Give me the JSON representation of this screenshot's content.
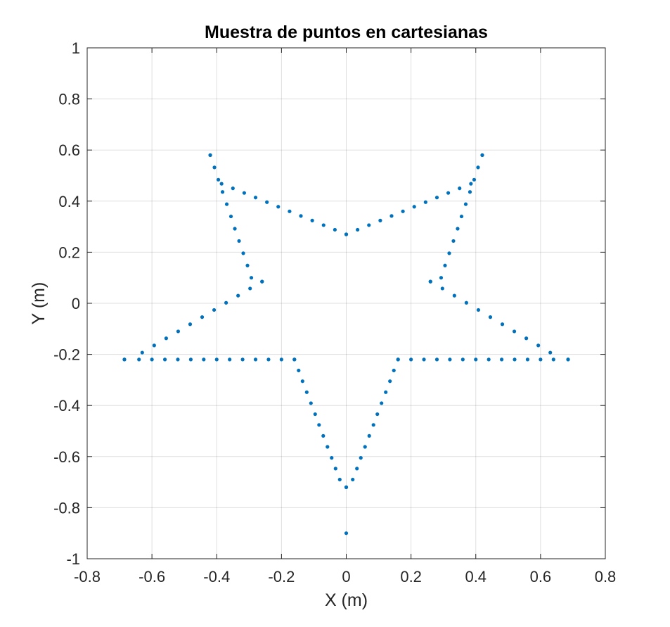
{
  "chart_data": {
    "type": "scatter",
    "title": "Muestra de puntos en cartesianas",
    "xlabel": "X (m)",
    "ylabel": "Y (m)",
    "xlim": [
      -0.8,
      0.8
    ],
    "ylim": [
      -1,
      1
    ],
    "xticks": [
      -0.8,
      -0.6,
      -0.4,
      -0.2,
      0,
      0.2,
      0.4,
      0.6,
      0.8
    ],
    "yticks": [
      -1,
      -0.8,
      -0.6,
      -0.4,
      -0.2,
      0,
      0.2,
      0.4,
      0.6,
      0.8,
      1
    ],
    "xtick_labels": [
      "-0.8",
      "-0.6",
      "-0.4",
      "-0.2",
      "0",
      "0.2",
      "0.4",
      "0.6",
      "0.8"
    ],
    "ytick_labels": [
      "-1",
      "-0.8",
      "-0.6",
      "-0.4",
      "-0.2",
      "0",
      "0.2",
      "0.4",
      "0.6",
      "0.8",
      "1"
    ],
    "grid": true,
    "marker_color": "#0072BD",
    "series": [
      {
        "points": [
          [
            0.0,
            0.27
          ],
          [
            0.035,
            0.288
          ],
          [
            0.07,
            0.306
          ],
          [
            0.105,
            0.324
          ],
          [
            0.14,
            0.342
          ],
          [
            0.175,
            0.36
          ],
          [
            0.21,
            0.378
          ],
          [
            0.245,
            0.396
          ],
          [
            0.28,
            0.414
          ],
          [
            0.315,
            0.432
          ],
          [
            0.35,
            0.45
          ],
          [
            0.385,
            0.468
          ],
          [
            0.42,
            0.58
          ],
          [
            0.42,
            0.58
          ],
          [
            0.407,
            0.532
          ],
          [
            0.395,
            0.484
          ],
          [
            0.382,
            0.436
          ],
          [
            0.369,
            0.388
          ],
          [
            0.356,
            0.34
          ],
          [
            0.344,
            0.292
          ],
          [
            0.331,
            0.244
          ],
          [
            0.318,
            0.196
          ],
          [
            0.305,
            0.148
          ],
          [
            0.293,
            0.1
          ],
          [
            0.26,
            0.085
          ],
          [
            0.26,
            0.085
          ],
          [
            0.297,
            0.058
          ],
          [
            0.334,
            0.03
          ],
          [
            0.371,
            0.002
          ],
          [
            0.408,
            -0.026
          ],
          [
            0.445,
            -0.054
          ],
          [
            0.482,
            -0.082
          ],
          [
            0.519,
            -0.11
          ],
          [
            0.556,
            -0.137
          ],
          [
            0.593,
            -0.165
          ],
          [
            0.63,
            -0.193
          ],
          [
            0.685,
            -0.22
          ],
          [
            0.685,
            -0.22
          ],
          [
            0.64,
            -0.22
          ],
          [
            0.6,
            -0.22
          ],
          [
            0.56,
            -0.22
          ],
          [
            0.52,
            -0.22
          ],
          [
            0.48,
            -0.22
          ],
          [
            0.44,
            -0.22
          ],
          [
            0.4,
            -0.22
          ],
          [
            0.36,
            -0.22
          ],
          [
            0.32,
            -0.22
          ],
          [
            0.28,
            -0.22
          ],
          [
            0.24,
            -0.22
          ],
          [
            0.2,
            -0.22
          ],
          [
            0.16,
            -0.22
          ],
          [
            0.16,
            -0.22
          ],
          [
            0.147,
            -0.263
          ],
          [
            0.135,
            -0.305
          ],
          [
            0.122,
            -0.348
          ],
          [
            0.109,
            -0.391
          ],
          [
            0.096,
            -0.434
          ],
          [
            0.084,
            -0.476
          ],
          [
            0.071,
            -0.519
          ],
          [
            0.058,
            -0.562
          ],
          [
            0.045,
            -0.605
          ],
          [
            0.033,
            -0.647
          ],
          [
            0.02,
            -0.69
          ],
          [
            0.0,
            -0.72
          ],
          [
            0.0,
            -0.72
          ],
          [
            -0.02,
            -0.69
          ],
          [
            -0.033,
            -0.647
          ],
          [
            -0.045,
            -0.605
          ],
          [
            -0.058,
            -0.562
          ],
          [
            -0.071,
            -0.519
          ],
          [
            -0.084,
            -0.476
          ],
          [
            -0.096,
            -0.434
          ],
          [
            -0.109,
            -0.391
          ],
          [
            -0.122,
            -0.348
          ],
          [
            -0.135,
            -0.305
          ],
          [
            -0.147,
            -0.263
          ],
          [
            -0.16,
            -0.22
          ],
          [
            -0.16,
            -0.22
          ],
          [
            -0.2,
            -0.22
          ],
          [
            -0.24,
            -0.22
          ],
          [
            -0.28,
            -0.22
          ],
          [
            -0.32,
            -0.22
          ],
          [
            -0.36,
            -0.22
          ],
          [
            -0.4,
            -0.22
          ],
          [
            -0.44,
            -0.22
          ],
          [
            -0.48,
            -0.22
          ],
          [
            -0.52,
            -0.22
          ],
          [
            -0.56,
            -0.22
          ],
          [
            -0.6,
            -0.22
          ],
          [
            -0.64,
            -0.22
          ],
          [
            -0.685,
            -0.22
          ],
          [
            -0.685,
            -0.22
          ],
          [
            -0.63,
            -0.193
          ],
          [
            -0.593,
            -0.165
          ],
          [
            -0.556,
            -0.137
          ],
          [
            -0.519,
            -0.11
          ],
          [
            -0.482,
            -0.082
          ],
          [
            -0.445,
            -0.054
          ],
          [
            -0.408,
            -0.026
          ],
          [
            -0.371,
            0.002
          ],
          [
            -0.334,
            0.03
          ],
          [
            -0.297,
            0.058
          ],
          [
            -0.26,
            0.085
          ],
          [
            -0.26,
            0.085
          ],
          [
            -0.293,
            0.1
          ],
          [
            -0.305,
            0.148
          ],
          [
            -0.318,
            0.196
          ],
          [
            -0.331,
            0.244
          ],
          [
            -0.344,
            0.292
          ],
          [
            -0.356,
            0.34
          ],
          [
            -0.369,
            0.388
          ],
          [
            -0.382,
            0.436
          ],
          [
            -0.395,
            0.484
          ],
          [
            -0.407,
            0.532
          ],
          [
            -0.42,
            0.58
          ],
          [
            -0.42,
            0.58
          ],
          [
            -0.385,
            0.468
          ],
          [
            -0.35,
            0.45
          ],
          [
            -0.315,
            0.432
          ],
          [
            -0.28,
            0.414
          ],
          [
            -0.245,
            0.396
          ],
          [
            -0.21,
            0.378
          ],
          [
            -0.175,
            0.36
          ],
          [
            -0.14,
            0.342
          ],
          [
            -0.105,
            0.324
          ],
          [
            -0.07,
            0.306
          ],
          [
            -0.035,
            0.288
          ],
          [
            0.0,
            0.27
          ],
          [
            0.0,
            -0.9
          ]
        ]
      }
    ]
  }
}
